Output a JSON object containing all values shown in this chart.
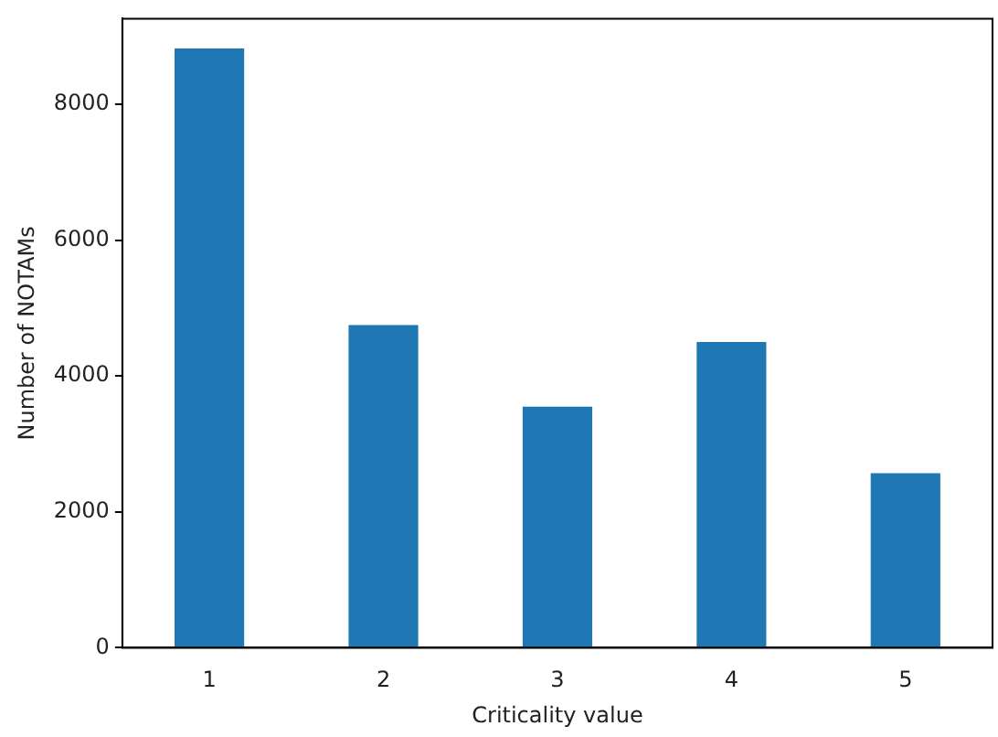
{
  "chart_data": {
    "type": "bar",
    "xlabel": "Criticality value",
    "ylabel": "Number of NOTAMs",
    "categories": [
      "1",
      "2",
      "3",
      "4",
      "5"
    ],
    "values": [
      8820,
      4750,
      3550,
      4500,
      2570
    ],
    "color": "#1f77b4",
    "ylim": [
      0,
      9260
    ],
    "yticks": [
      0,
      2000,
      4000,
      6000,
      8000
    ],
    "grid": false,
    "legend": false
  }
}
